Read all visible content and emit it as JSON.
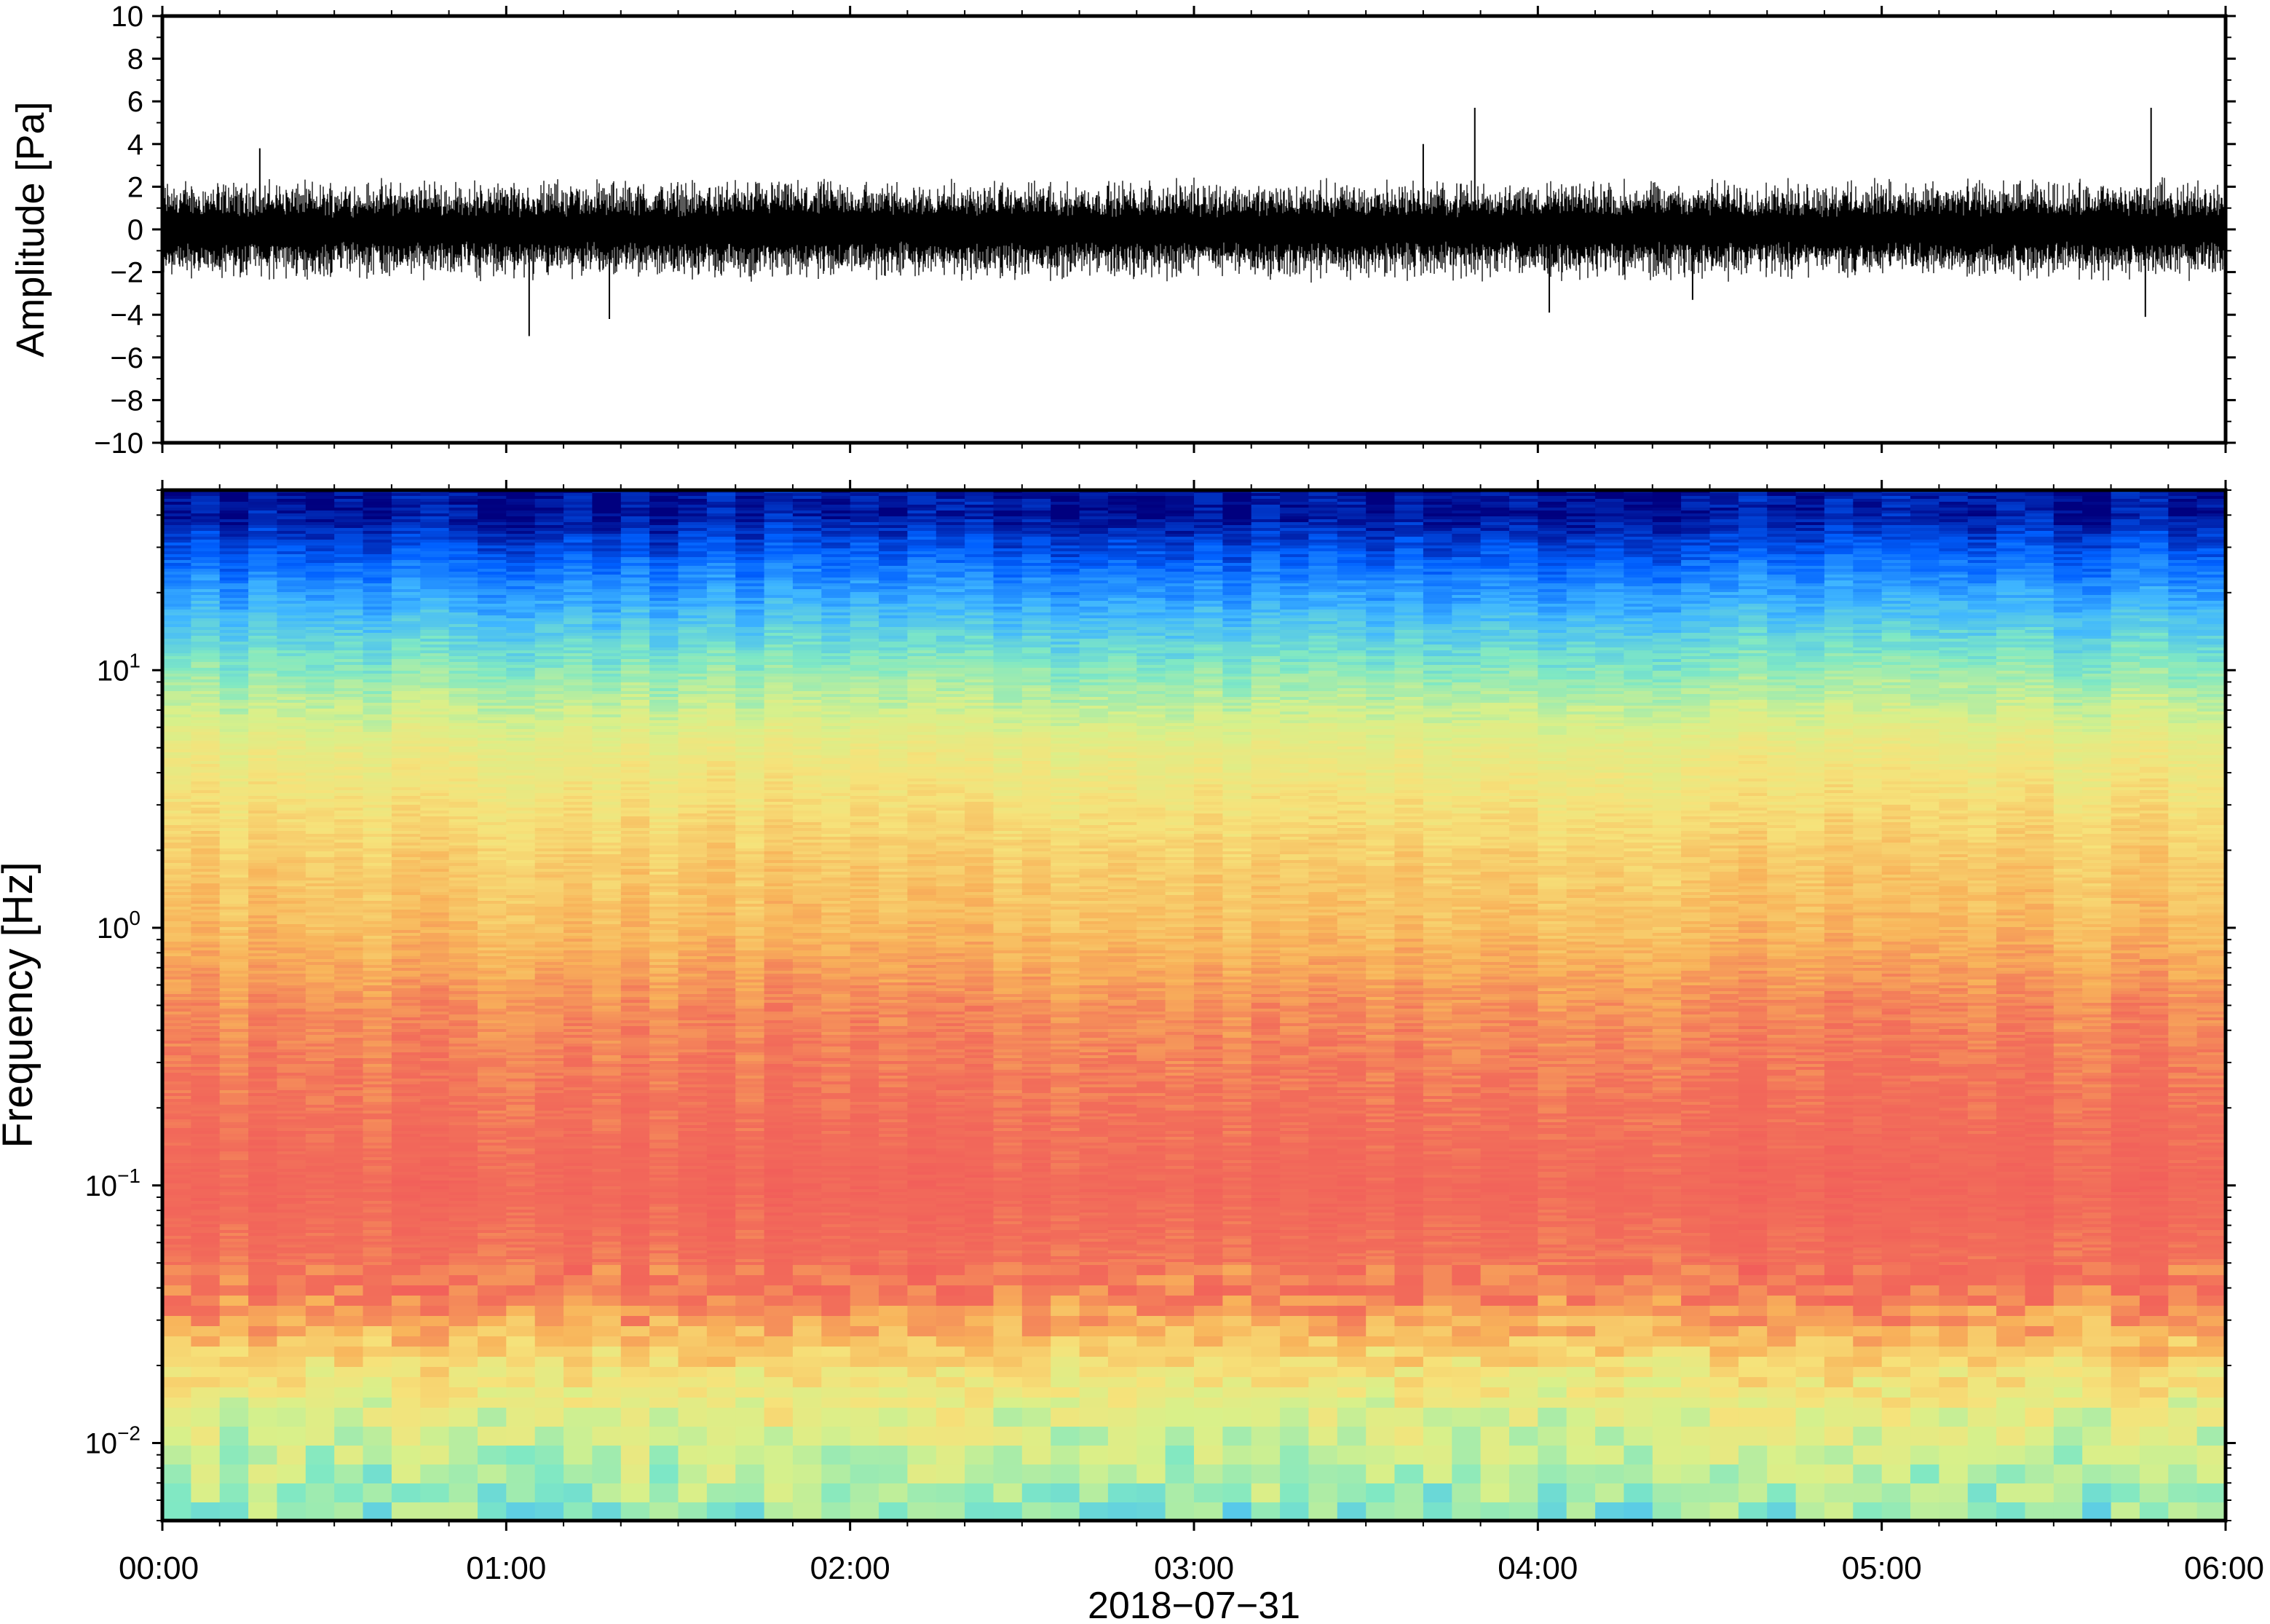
{
  "chart_data": [
    {
      "type": "line",
      "title": "",
      "ylabel": "Amplitude [Pa]",
      "xlabel": "",
      "ylim": [
        -10,
        10
      ],
      "yticks": [
        -10,
        -8,
        -6,
        -4,
        -2,
        0,
        2,
        4,
        6,
        8,
        10
      ],
      "ytick_labels": [
        "−10",
        "−8",
        "−6",
        "−4",
        "−2",
        "0",
        "2",
        "4",
        "6",
        "8",
        "10"
      ],
      "x_range": [
        "00:00",
        "06:00"
      ],
      "grid": false,
      "series": [
        {
          "color": "#000000",
          "typical_range": [
            -2.5,
            2.5
          ],
          "peaks": [
            {
              "x": "00:17",
              "y": 3.8
            },
            {
              "x": "01:04",
              "y": -5.0
            },
            {
              "x": "01:18",
              "y": -4.2
            },
            {
              "x": "03:40",
              "y": 4.0
            },
            {
              "x": "03:49",
              "y": 5.7
            },
            {
              "x": "04:02",
              "y": -3.9
            },
            {
              "x": "04:27",
              "y": -3.3
            },
            {
              "x": "05:47",
              "y": 5.7
            },
            {
              "x": "05:46",
              "y": -4.1
            }
          ]
        }
      ]
    },
    {
      "type": "heatmap",
      "title": "",
      "ylabel": "Frequency [Hz]",
      "xlabel": "2018−07−31",
      "y_scale": "log",
      "ylim": [
        0.005,
        50
      ],
      "y_tick_labels": [
        {
          "base": "10",
          "exp": "−2",
          "value": 0.01
        },
        {
          "base": "10",
          "exp": "−1",
          "value": 0.1
        },
        {
          "base": "10",
          "exp": "0",
          "value": 1
        },
        {
          "base": "10",
          "exp": "1",
          "value": 10
        }
      ],
      "x_tick_labels": [
        "00:00",
        "01:00",
        "02:00",
        "03:00",
        "04:00",
        "05:00",
        "06:00"
      ],
      "colormap": "jet",
      "colormap_stops": [
        "#00007f",
        "#0060ff",
        "#3fb6ff",
        "#7fe8c4",
        "#d8f08a",
        "#f6e27a",
        "#f8b35a",
        "#f26e5a",
        "#f25b5a"
      ],
      "power_profile": [
        {
          "frequency": 40,
          "level": 0.03
        },
        {
          "frequency": 20,
          "level": 0.22
        },
        {
          "frequency": 10,
          "level": 0.4
        },
        {
          "frequency": 5,
          "level": 0.57
        },
        {
          "frequency": 2,
          "level": 0.68
        },
        {
          "frequency": 1,
          "level": 0.73
        },
        {
          "frequency": 0.5,
          "level": 0.82
        },
        {
          "frequency": 0.1,
          "level": 0.92
        },
        {
          "frequency": 0.04,
          "level": 0.86
        },
        {
          "frequency": 0.02,
          "level": 0.62
        },
        {
          "frequency": 0.01,
          "level": 0.48
        },
        {
          "frequency": 0.006,
          "level": 0.4
        }
      ]
    }
  ]
}
